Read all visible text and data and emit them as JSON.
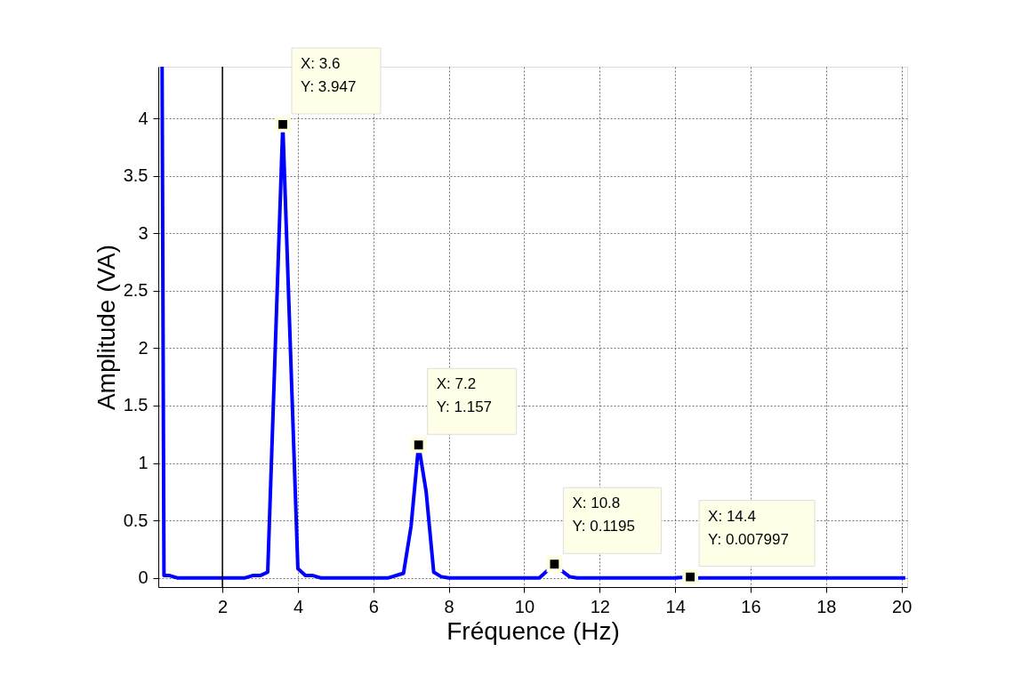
{
  "chart_data": {
    "type": "line",
    "xlabel": "Fréquence (Hz)",
    "ylabel": "Amplitude (VA)",
    "x": [
      0.4,
      0.45,
      0.6,
      0.8,
      1.0,
      1.2,
      1.6,
      2.0,
      2.4,
      2.6,
      2.8,
      3.0,
      3.2,
      3.6,
      4.0,
      4.2,
      4.4,
      4.6,
      5.0,
      5.6,
      6.0,
      6.4,
      6.8,
      7.0,
      7.2,
      7.4,
      7.6,
      7.8,
      8.0,
      9.0,
      10.0,
      10.4,
      10.6,
      10.8,
      11.0,
      11.2,
      11.4,
      12.0,
      13.0,
      14.0,
      14.4,
      14.6,
      15.0,
      16.0,
      17.0,
      18.0,
      19.0,
      20.1
    ],
    "series": [
      {
        "color": "#0000ff",
        "values": [
          4.45,
          0.02,
          0.02,
          0.0,
          0.0,
          0.0,
          0.0,
          0.0,
          0.0,
          0.0,
          0.02,
          0.02,
          0.05,
          3.947,
          0.08,
          0.02,
          0.02,
          0.0,
          0.0,
          0.0,
          0.0,
          0.0,
          0.04,
          0.45,
          1.157,
          0.75,
          0.05,
          0.01,
          0.0,
          0.0,
          0.0,
          0.0,
          0.06,
          0.1195,
          0.06,
          0.01,
          0.0,
          0.0,
          0.0,
          0.0,
          0.007997,
          0.0,
          0.0,
          0.0,
          0.0,
          0.0,
          0.0,
          0.0
        ]
      }
    ],
    "xlim": [
      0.3,
      20.15
    ],
    "ylim": [
      -0.08,
      4.45
    ],
    "xticks": [
      2,
      4,
      6,
      8,
      10,
      12,
      14,
      16,
      18,
      20
    ],
    "yticks": [
      0,
      0.5,
      1,
      1.5,
      2,
      2.5,
      3,
      3.5,
      4
    ],
    "grid": true,
    "marker": "none",
    "line_style": "solid",
    "ref_lines": [
      {
        "axis": "x",
        "value": 2,
        "color": "#000000"
      }
    ],
    "annotations": [
      {
        "text": "X: 3.6\nY: 3.947",
        "x": 3.6,
        "y": 3.947
      },
      {
        "text": "X: 7.2\nY: 1.157",
        "x": 7.2,
        "y": 1.157
      },
      {
        "text": "X: 10.8\nY: 0.1195",
        "x": 10.8,
        "y": 0.1195
      },
      {
        "text": "X: 14.4\nY: 0.007997",
        "x": 14.4,
        "y": 0.007997
      }
    ]
  }
}
